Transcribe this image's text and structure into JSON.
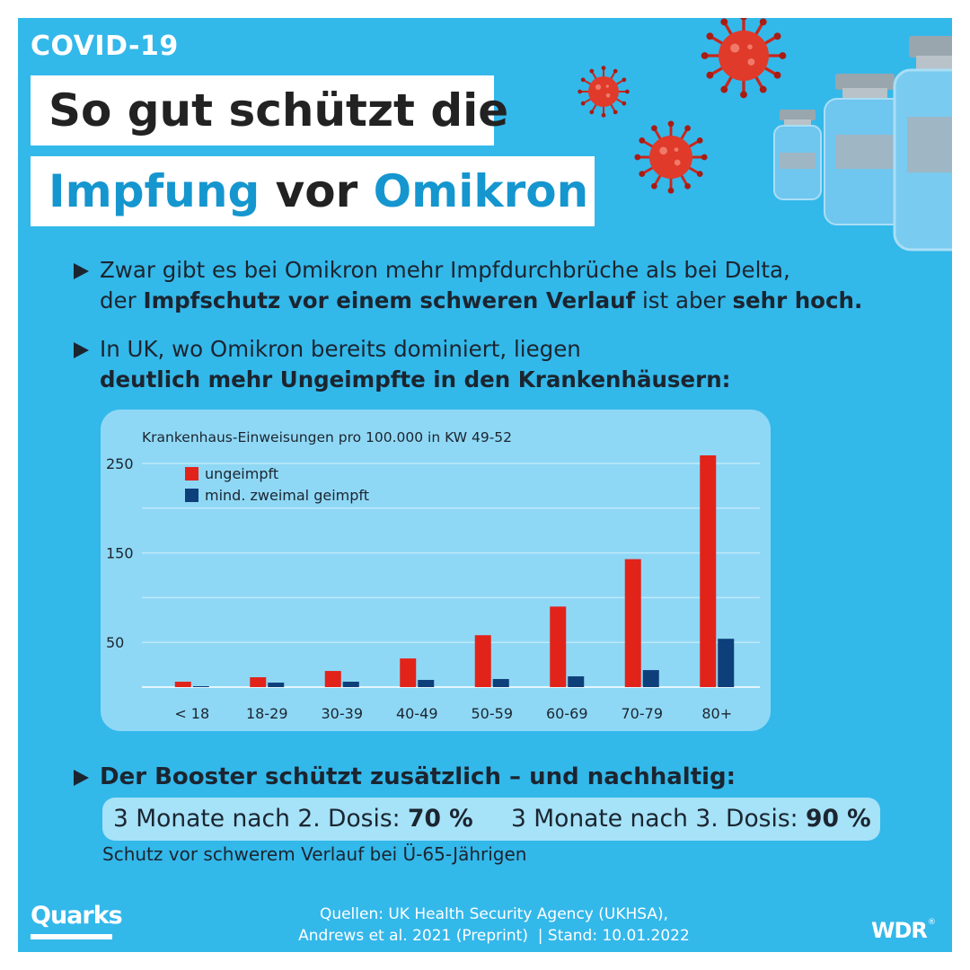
{
  "header": {
    "tag": "COVID-19",
    "title_line1": "So gut schützt die",
    "title_line2_part1": "Impfung",
    "title_line2_part2": " vor ",
    "title_line2_part3": "Omikron"
  },
  "bullets": {
    "b1_part1": "Zwar gibt es bei Omikron mehr Impfdurchbrüche als bei Delta,",
    "b1_part2": "der ",
    "b1_part3": "Impfschutz vor einem schweren Verlauf",
    "b1_part4": " ist aber ",
    "b1_part5": "sehr hoch.",
    "b2_part1": "In UK, wo Omikron bereits dominiert, liegen",
    "b2_part2": "deutlich mehr Ungeimpfte in den Krankenhäusern:",
    "b3": "Der Booster schützt zusätzlich – und nachhaltig:"
  },
  "booster": {
    "item1_label": "3 Monate nach 2. Dosis: ",
    "item1_value": "70 %",
    "item2_label": "3 Monate nach 3. Dosis: ",
    "item2_value": "90 %",
    "note": "Schutz vor schwerem Verlauf bei Ü-65-Jährigen"
  },
  "footer": {
    "brand_left": "Quarks",
    "source_line1": "Quellen: UK Health Security Agency (UKHSA),",
    "source_line2": "Andrews et al. 2021 (Preprint)  | Stand: 10.01.2022",
    "brand_right": "WDR",
    "brand_right_mark": "®"
  },
  "colors": {
    "background": "#33b8ea",
    "accent_blue": "#1596cf",
    "unvaccinated": "#e2231a",
    "vaccinated": "#0d3f7a",
    "chart_card": "#8fd8f5"
  },
  "icons": [
    "play-triangle-icon",
    "virus-icon",
    "vaccine-vial-icon"
  ],
  "chart_data": {
    "type": "bar",
    "title": "Krankenhaus-Einweisungen pro 100.000 in KW 49-52",
    "categories": [
      "< 18",
      "18-29",
      "30-39",
      "40-49",
      "50-59",
      "60-69",
      "70-79",
      "80+"
    ],
    "series": [
      {
        "name": "ungeimpft",
        "color": "#e2231a",
        "values": [
          6,
          11,
          18,
          32,
          58,
          90,
          143,
          259
        ]
      },
      {
        "name": "mind. zweimal geimpft",
        "color": "#0d3f7a",
        "values": [
          1,
          5,
          6,
          8,
          9,
          12,
          19,
          54
        ]
      }
    ],
    "yticks": [
      50,
      150,
      250
    ],
    "ylim": [
      0,
      260
    ],
    "grid": true,
    "legend_position": "top-left"
  }
}
